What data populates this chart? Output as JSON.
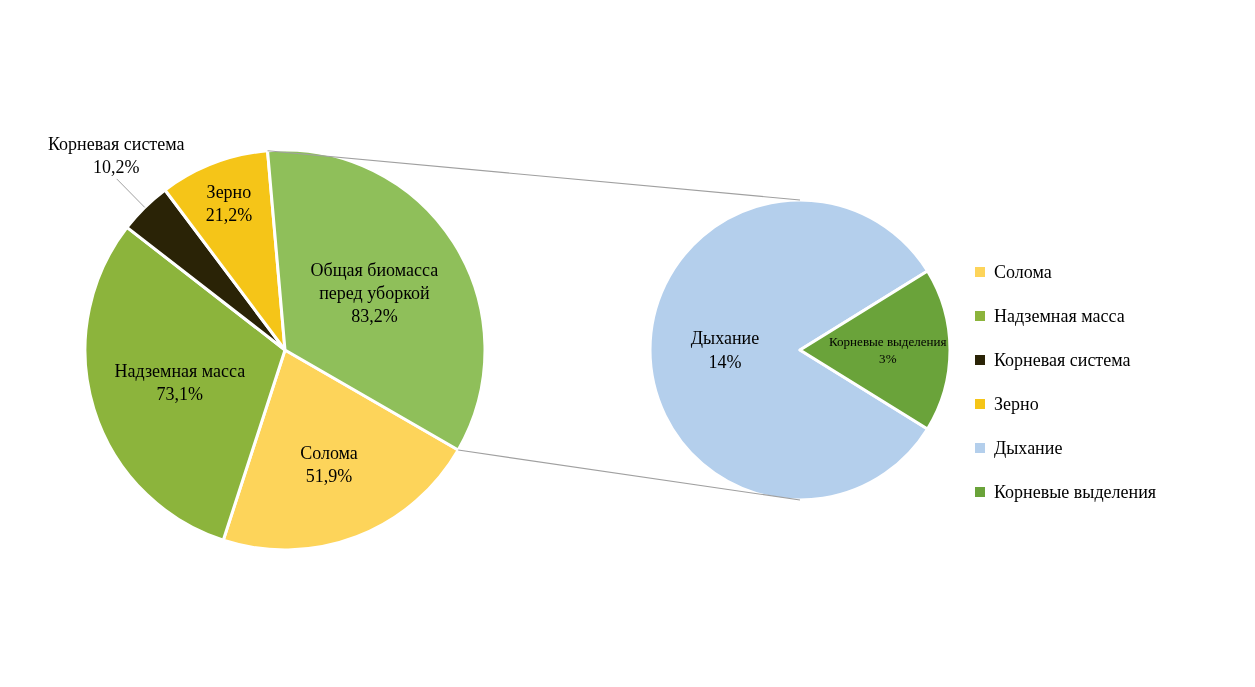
{
  "chart_data": [
    {
      "type": "pie",
      "categories": [
        "Солома",
        "Надземная масса",
        "Корневая система",
        "Зерно",
        "Общая биомасса перед уборкой"
      ],
      "values": [
        51.9,
        73.1,
        10.2,
        21.2,
        83.2
      ],
      "colors": [
        "#fdd45a",
        "#8cb43c",
        "#2a2306",
        "#f5c518",
        "#8fbf5a"
      ],
      "value_labels": [
        "51,9%",
        "73,1%",
        "10,2%",
        "21,2%",
        "83,2%"
      ],
      "legend": "right"
    },
    {
      "type": "pie",
      "categories": [
        "Дыхание",
        "Корневые выделения"
      ],
      "values": [
        14,
        3
      ],
      "colors": [
        "#b4cfec",
        "#6aa33a"
      ],
      "value_labels": [
        "14%",
        "3%"
      ],
      "legend": "right"
    }
  ]
}
